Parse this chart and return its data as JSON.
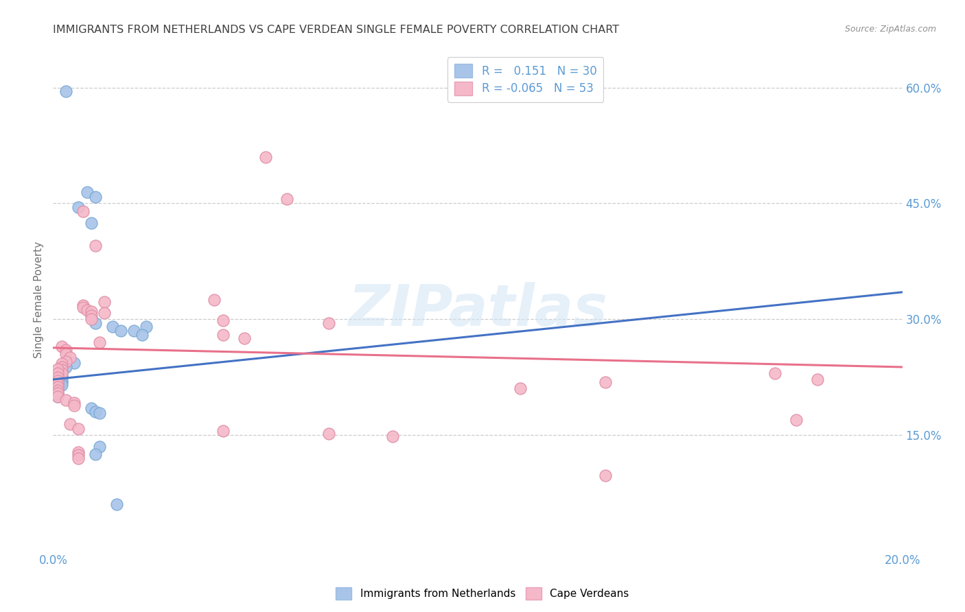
{
  "title": "IMMIGRANTS FROM NETHERLANDS VS CAPE VERDEAN SINGLE FEMALE POVERTY CORRELATION CHART",
  "source": "Source: ZipAtlas.com",
  "ylabel": "Single Female Poverty",
  "watermark": "ZIPatlas",
  "legend_blue_r": "0.151",
  "legend_blue_n": "30",
  "legend_pink_r": "-0.065",
  "legend_pink_n": "53",
  "blue_color": "#a8c4e8",
  "pink_color": "#f5b8c8",
  "blue_line_color": "#4472c4",
  "pink_line_color": "#e8708a",
  "background_color": "#ffffff",
  "grid_color": "#cccccc",
  "title_color": "#404040",
  "axis_label_color": "#5b9bd5",
  "blue_scatter": [
    [
      0.003,
      0.595
    ],
    [
      0.008,
      0.465
    ],
    [
      0.01,
      0.458
    ],
    [
      0.006,
      0.445
    ],
    [
      0.009,
      0.425
    ],
    [
      0.01,
      0.295
    ],
    [
      0.014,
      0.29
    ],
    [
      0.016,
      0.285
    ],
    [
      0.022,
      0.29
    ],
    [
      0.019,
      0.285
    ],
    [
      0.021,
      0.28
    ],
    [
      0.005,
      0.243
    ],
    [
      0.003,
      0.238
    ],
    [
      0.002,
      0.232
    ],
    [
      0.002,
      0.227
    ],
    [
      0.002,
      0.225
    ],
    [
      0.002,
      0.22
    ],
    [
      0.002,
      0.218
    ],
    [
      0.002,
      0.215
    ],
    [
      0.001,
      0.222
    ],
    [
      0.001,
      0.217
    ],
    [
      0.001,
      0.21
    ],
    [
      0.001,
      0.205
    ],
    [
      0.001,
      0.2
    ],
    [
      0.009,
      0.185
    ],
    [
      0.01,
      0.18
    ],
    [
      0.011,
      0.178
    ],
    [
      0.011,
      0.135
    ],
    [
      0.01,
      0.125
    ],
    [
      0.015,
      0.06
    ]
  ],
  "pink_scatter": [
    [
      0.05,
      0.51
    ],
    [
      0.055,
      0.456
    ],
    [
      0.007,
      0.44
    ],
    [
      0.01,
      0.395
    ],
    [
      0.038,
      0.325
    ],
    [
      0.012,
      0.322
    ],
    [
      0.007,
      0.318
    ],
    [
      0.007,
      0.315
    ],
    [
      0.008,
      0.312
    ],
    [
      0.009,
      0.31
    ],
    [
      0.012,
      0.308
    ],
    [
      0.009,
      0.305
    ],
    [
      0.009,
      0.3
    ],
    [
      0.04,
      0.298
    ],
    [
      0.065,
      0.295
    ],
    [
      0.04,
      0.28
    ],
    [
      0.045,
      0.275
    ],
    [
      0.011,
      0.27
    ],
    [
      0.002,
      0.265
    ],
    [
      0.003,
      0.26
    ],
    [
      0.003,
      0.255
    ],
    [
      0.004,
      0.25
    ],
    [
      0.003,
      0.245
    ],
    [
      0.002,
      0.242
    ],
    [
      0.002,
      0.238
    ],
    [
      0.002,
      0.234
    ],
    [
      0.002,
      0.23
    ],
    [
      0.001,
      0.235
    ],
    [
      0.001,
      0.23
    ],
    [
      0.001,
      0.225
    ],
    [
      0.001,
      0.22
    ],
    [
      0.001,
      0.216
    ],
    [
      0.001,
      0.212
    ],
    [
      0.001,
      0.208
    ],
    [
      0.001,
      0.204
    ],
    [
      0.001,
      0.2
    ],
    [
      0.003,
      0.195
    ],
    [
      0.005,
      0.192
    ],
    [
      0.005,
      0.188
    ],
    [
      0.004,
      0.164
    ],
    [
      0.006,
      0.158
    ],
    [
      0.006,
      0.128
    ],
    [
      0.006,
      0.124
    ],
    [
      0.006,
      0.12
    ],
    [
      0.04,
      0.155
    ],
    [
      0.065,
      0.152
    ],
    [
      0.08,
      0.148
    ],
    [
      0.11,
      0.21
    ],
    [
      0.13,
      0.098
    ],
    [
      0.13,
      0.218
    ],
    [
      0.17,
      0.23
    ],
    [
      0.175,
      0.17
    ],
    [
      0.18,
      0.222
    ]
  ],
  "blue_line_x": [
    0.0,
    0.2
  ],
  "blue_line_y": [
    0.222,
    0.335
  ],
  "pink_line_x": [
    0.0,
    0.2
  ],
  "pink_line_y": [
    0.263,
    0.238
  ],
  "xlim": [
    0,
    0.2
  ],
  "ylim": [
    0,
    0.65
  ],
  "xtick_vals": [
    0.0,
    0.025,
    0.05,
    0.075,
    0.1,
    0.125,
    0.15,
    0.175,
    0.2
  ],
  "ytick_right_vals": [
    0.15,
    0.3,
    0.45,
    0.6
  ],
  "ytick_right_labels": [
    "15.0%",
    "30.0%",
    "45.0%",
    "60.0%"
  ]
}
